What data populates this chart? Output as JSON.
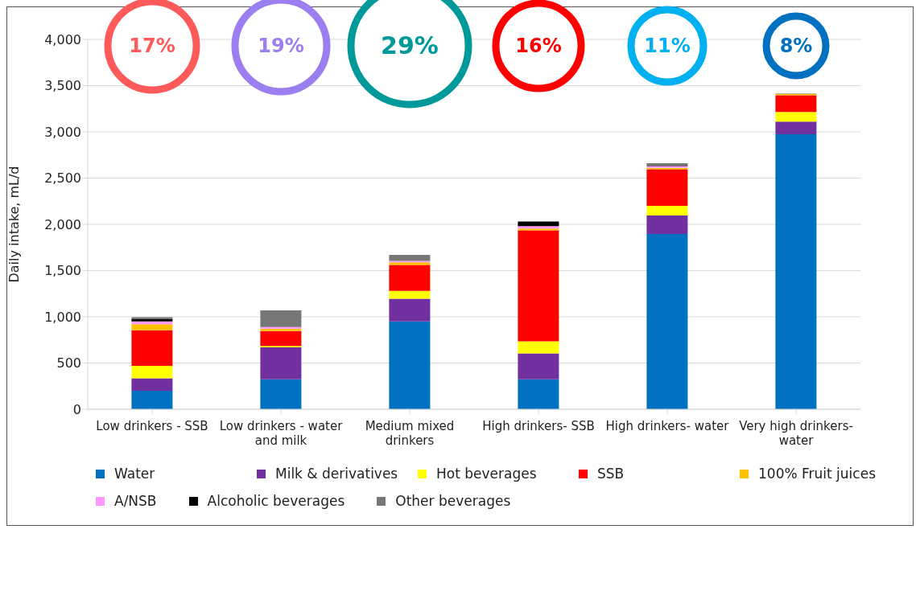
{
  "chart_data": {
    "type": "bar",
    "stacked": true,
    "ylabel": "Daily intake, mL/d",
    "categories": [
      "Low drinkers - SSB",
      "Low drinkers - water and milk",
      "Medium mixed drinkers",
      "High drinkers- SSB",
      "High drinkers- water",
      "Very high drinkers- water"
    ],
    "series": [
      {
        "name": "Water",
        "color": "#0070c0",
        "values": [
          200,
          325,
          950,
          325,
          1895,
          2975
        ]
      },
      {
        "name": "Milk & derivatives",
        "color": "#7030a0",
        "values": [
          135,
          345,
          245,
          280,
          200,
          135
        ]
      },
      {
        "name": "Hot beverages",
        "color": "#ffff00",
        "values": [
          135,
          15,
          85,
          130,
          105,
          105
        ]
      },
      {
        "name": "SSB",
        "color": "#ff0000",
        "values": [
          385,
          160,
          280,
          1200,
          395,
          180
        ]
      },
      {
        "name": "100% Fruit juices",
        "color": "#ffc000",
        "values": [
          65,
          27,
          30,
          20,
          15,
          15
        ]
      },
      {
        "name": "A/NSB",
        "color": "#ff99ff",
        "values": [
          30,
          18,
          15,
          25,
          20,
          null
        ]
      },
      {
        "name": "Alcoholic beverages",
        "color": "#000000",
        "values": [
          25,
          0,
          null,
          50,
          5,
          0
        ]
      },
      {
        "name": "Other beverages",
        "color": "#777777",
        "values": [
          20,
          180,
          65,
          0,
          25,
          5
        ]
      }
    ],
    "ylim": [
      0,
      4000
    ],
    "yticks": [
      0,
      500,
      {
        "value": 1000,
        "label": "1,000"
      },
      {
        "value": 1500,
        "label": "1,500"
      },
      {
        "value": 2000,
        "label": "2,000"
      },
      {
        "value": 2500,
        "label": "2,500"
      },
      {
        "value": 3000,
        "label": "3,000"
      },
      {
        "value": 3500,
        "label": "3,500"
      },
      {
        "value": 4000,
        "label": "4,000"
      }
    ],
    "grid": "y",
    "legend": "bottom",
    "annotations": [
      "17%",
      "19%",
      "29%",
      "16%",
      "11%",
      "8%"
    ]
  }
}
